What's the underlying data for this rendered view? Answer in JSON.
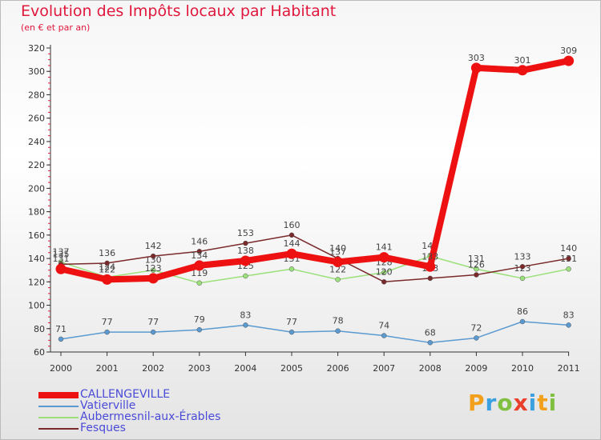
{
  "chart_data": {
    "type": "line",
    "title": "Evolution des Impôts locaux par Habitant",
    "subtitle": "(en € et par an)",
    "xlabel": "",
    "ylabel": "",
    "ylim": [
      60,
      320
    ],
    "yticks": [
      60,
      80,
      100,
      120,
      140,
      160,
      180,
      200,
      220,
      240,
      260,
      280,
      300,
      320
    ],
    "categories": [
      "2000",
      "2001",
      "2002",
      "2003",
      "2004",
      "2005",
      "2006",
      "2007",
      "2008",
      "2009",
      "2010",
      "2011"
    ],
    "series": [
      {
        "name": "Aubermesnil-aux-Érables",
        "color": "#9be07a",
        "values": [
          137,
          124,
          130,
          119,
          125,
          131,
          122,
          128,
          142,
          131,
          123,
          131
        ]
      },
      {
        "name": "Fesques",
        "color": "#7a2a2a",
        "values": [
          135,
          136,
          142,
          146,
          153,
          160,
          140,
          120,
          123,
          126,
          133,
          140
        ]
      },
      {
        "name": "Vatierville",
        "color": "#5a9ad0",
        "values": [
          71,
          77,
          77,
          79,
          83,
          77,
          78,
          74,
          68,
          72,
          86,
          83
        ]
      },
      {
        "name": "CALLENGEVILLE",
        "color": "#ee1111",
        "values": [
          131,
          122,
          123,
          134,
          138,
          144,
          137,
          141,
          133,
          303,
          301,
          309
        ]
      }
    ],
    "legend": [
      {
        "name": "CALLENGEVILLE",
        "color": "#ee1111"
      },
      {
        "name": "Vatierville",
        "color": "#5a9ad0"
      },
      {
        "name": "Aubermesnil-aux-Érables",
        "color": "#9be07a"
      },
      {
        "name": "Fesques",
        "color": "#7a2a2a"
      }
    ]
  },
  "logo": {
    "text": "Proxiti"
  }
}
